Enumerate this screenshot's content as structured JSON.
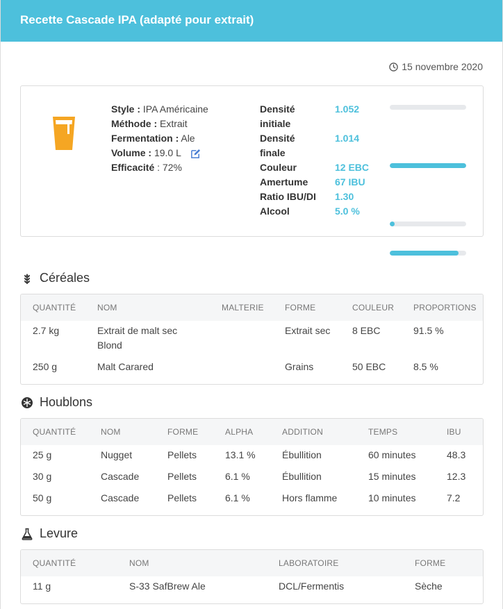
{
  "header": {
    "title": "Recette Cascade IPA (adapté pour extrait)"
  },
  "date": "15 novembre 2020",
  "summary": {
    "style_label": "Style :",
    "style_value": "IPA Américaine",
    "method_label": "Méthode :",
    "method_value": "Extrait",
    "fermentation_label": "Fermentation :",
    "fermentation_value": "Ale",
    "volume_label": "Volume :",
    "volume_value": "19.0 L",
    "efficiency_label": "Efficacité",
    "efficiency_value": ": 72%"
  },
  "stats": [
    {
      "label": "Densité initiale",
      "value": "1.052",
      "bar": 0.0
    },
    {
      "label": "Densité finale",
      "value": "1.014",
      "bar": 1.0
    },
    {
      "label": "Couleur",
      "value": "12 EBC",
      "bar": 0.06
    },
    {
      "label": "Amertume",
      "value": "67 IBU",
      "bar": 0.9
    },
    {
      "label": "Ratio IBU/DI",
      "value": "1.30"
    },
    {
      "label": "Alcool",
      "value": "5.0 %",
      "bar": 0.0
    }
  ],
  "cereals": {
    "title": "Céréales",
    "headers": [
      "QUANTITÉ",
      "NOM",
      "MALTERIE",
      "FORME",
      "COULEUR",
      "PROPORTIONS"
    ],
    "rows": [
      [
        "2.7 kg",
        "Extrait de malt sec Blond",
        "",
        "Extrait sec",
        "8 EBC",
        "91.5 %"
      ],
      [
        "250 g",
        "Malt Carared",
        "",
        "Grains",
        "50 EBC",
        "8.5 %"
      ]
    ]
  },
  "hops": {
    "title": "Houblons",
    "headers": [
      "QUANTITÉ",
      "NOM",
      "FORME",
      "ALPHA",
      "ADDITION",
      "TEMPS",
      "IBU"
    ],
    "rows": [
      [
        "25 g",
        "Nugget",
        "Pellets",
        "13.1 %",
        "Ébullition",
        "60 minutes",
        "48.3"
      ],
      [
        "30 g",
        "Cascade",
        "Pellets",
        "6.1 %",
        "Ébullition",
        "15 minutes",
        "12.3"
      ],
      [
        "50 g",
        "Cascade",
        "Pellets",
        "6.1 %",
        "Hors flamme",
        "10 minutes",
        "7.2"
      ]
    ]
  },
  "yeast": {
    "title": "Levure",
    "headers": [
      "QUANTITÉ",
      "NOM",
      "LABORATOIRE",
      "FORME"
    ],
    "rows": [
      [
        "11 g",
        "S-33 SafBrew Ale",
        "DCL/Fermentis",
        "Sèche"
      ]
    ]
  }
}
